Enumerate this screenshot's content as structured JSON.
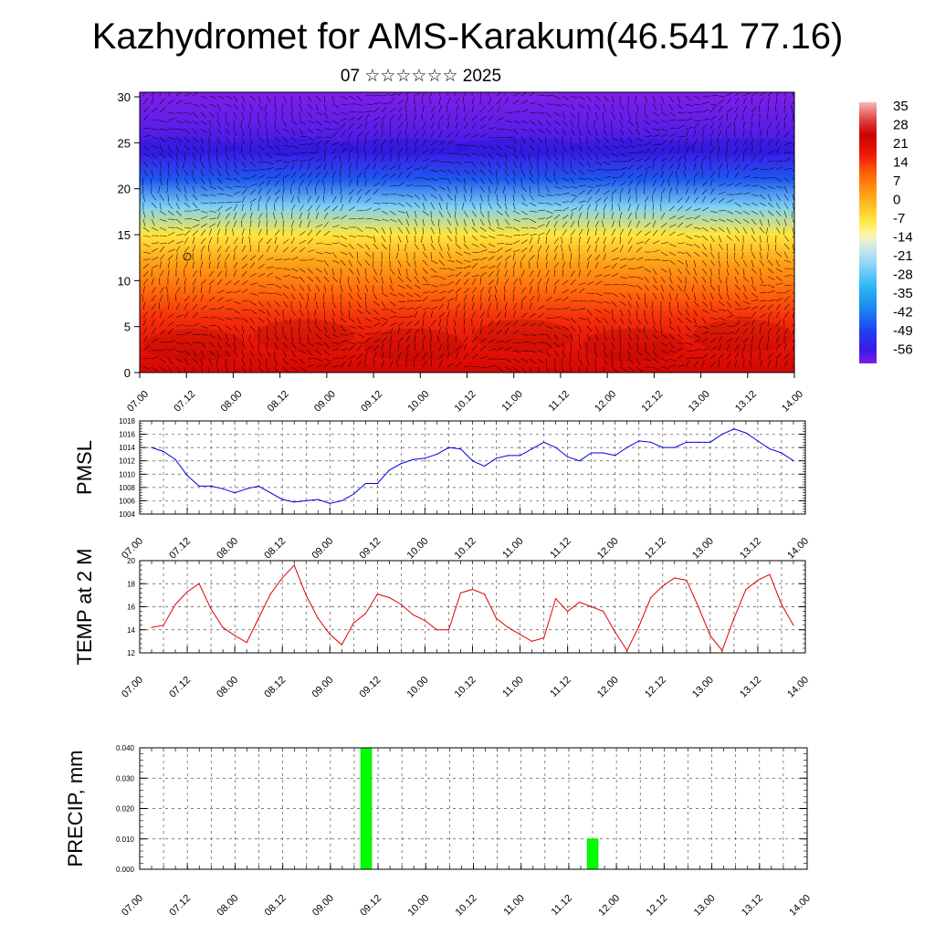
{
  "header": {
    "title": "Kazhydromet for AMS-Karakum(46.541 77.16)",
    "subtitle": "07 ☆☆☆☆☆☆ 2025"
  },
  "time_labels": [
    "07.00",
    "07.12",
    "08.00",
    "08.12",
    "09.00",
    "09.12",
    "10.00",
    "10.12",
    "11.00",
    "11.12",
    "12.00",
    "12.12",
    "13.00",
    "13.12",
    "14.00"
  ],
  "chart_data": [
    {
      "type": "heatmap",
      "y_ticks": [
        0,
        5,
        10,
        15,
        20,
        25,
        30
      ],
      "ylim": [
        0,
        30.5
      ],
      "colorbar": {
        "labels": [
          "35",
          "28",
          "21",
          "14",
          "7",
          "0",
          "-7",
          "-14",
          "-21",
          "-28",
          "-35",
          "-42",
          "-49",
          "-56"
        ],
        "range": [
          -60,
          38
        ]
      },
      "profile": {
        "heights": [
          0,
          3,
          6,
          9,
          12,
          15,
          18,
          21,
          24,
          27,
          30
        ],
        "temps": [
          24,
          20,
          16,
          10,
          3,
          -6,
          -24,
          -45,
          -55,
          -58,
          -60
        ]
      }
    },
    {
      "type": "line",
      "ylabel": "PMSL",
      "ylim": [
        1004,
        1018
      ],
      "y_ticks": [
        "1004",
        "1006",
        "1008",
        "1010",
        "1012",
        "1014",
        "1016",
        "1018"
      ],
      "color": "#0000e0",
      "x": [
        0,
        3,
        6,
        9,
        12,
        15,
        18,
        21,
        24,
        27,
        30,
        33,
        36,
        39,
        42,
        45,
        48,
        51,
        54,
        57,
        60,
        63,
        66,
        69,
        72,
        75,
        78,
        81,
        84,
        87,
        90,
        93,
        96,
        99,
        102,
        105,
        108,
        111,
        114,
        117,
        120,
        123,
        126,
        129,
        132,
        135,
        138,
        141,
        144,
        147,
        150,
        153,
        156,
        159,
        162
      ],
      "values": [
        1014,
        1013.4,
        1012.2,
        1009.8,
        1008.2,
        1008.2,
        1007.8,
        1007.2,
        1007.8,
        1008.2,
        1007.2,
        1006.2,
        1005.8,
        1006,
        1006.2,
        1005.6,
        1006,
        1007,
        1008.6,
        1008.6,
        1010.6,
        1011.6,
        1012.2,
        1012.4,
        1013,
        1014,
        1013.8,
        1012,
        1011.2,
        1012.4,
        1012.8,
        1012.8,
        1013.8,
        1014.8,
        1014,
        1012.6,
        1012,
        1013.2,
        1013.2,
        1012.8,
        1014,
        1015,
        1014.8,
        1014,
        1014,
        1014.8,
        1014.8,
        1014.8,
        1016,
        1016.8,
        1016.2,
        1015,
        1013.8,
        1013.2,
        1012
      ]
    },
    {
      "type": "line",
      "ylabel": "TEMP at 2 M",
      "ylim": [
        12,
        20
      ],
      "y_ticks": [
        "12",
        "14",
        "16",
        "18",
        "20"
      ],
      "color": "#e00000",
      "x": [
        0,
        3,
        6,
        9,
        12,
        15,
        18,
        21,
        24,
        27,
        30,
        33,
        36,
        39,
        42,
        45,
        48,
        51,
        54,
        57,
        60,
        63,
        66,
        69,
        72,
        75,
        78,
        81,
        84,
        87,
        90,
        93,
        96,
        99,
        102,
        105,
        108,
        111,
        114,
        117,
        120,
        123,
        126,
        129,
        132,
        135,
        138,
        141,
        144,
        147,
        150,
        153,
        156,
        159,
        162
      ],
      "values": [
        14.2,
        14.4,
        16.2,
        17.3,
        18,
        15.8,
        14.2,
        13.5,
        12.9,
        15,
        17.1,
        18.5,
        19.6,
        17,
        15,
        13.6,
        12.7,
        14.6,
        15.4,
        17.1,
        16.8,
        16.2,
        15.3,
        14.8,
        14,
        14,
        17.2,
        17.5,
        17.1,
        15,
        14.2,
        13.6,
        13,
        13.3,
        16.7,
        15.6,
        16.4,
        16,
        15.6,
        13.8,
        12.2,
        14.3,
        16.8,
        17.8,
        18.5,
        18.3,
        16,
        13.5,
        12.2,
        15,
        17.5,
        18.3,
        18.8,
        16.2,
        14.4
      ]
    },
    {
      "type": "bar",
      "ylabel": "PRECIP, mm",
      "ylim": [
        0,
        0.04
      ],
      "y_ticks": [
        "0.000",
        "0.010",
        "0.020",
        "0.030",
        "0.040"
      ],
      "color": "#00ff00",
      "bars": [
        {
          "x": 57,
          "value": 0.04
        },
        {
          "x": 114,
          "value": 0.01
        }
      ]
    }
  ]
}
